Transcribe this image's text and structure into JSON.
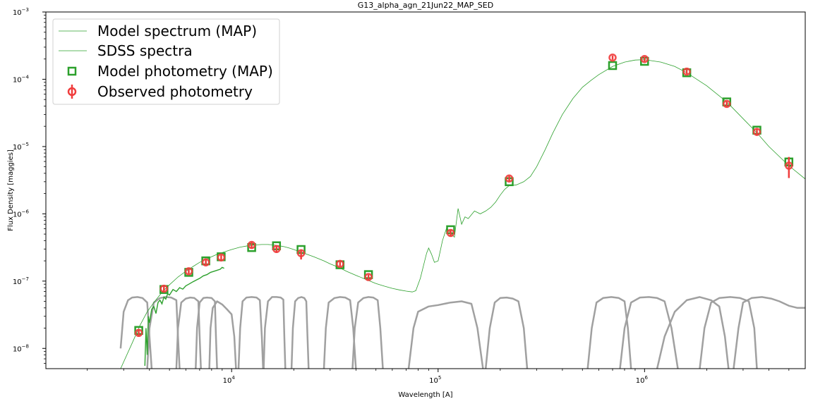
{
  "chart_data": {
    "type": "scatter",
    "title": "G13_alpha_agn_21Jun22_MAP_SED",
    "xlabel": "Wavelength [A]",
    "ylabel": "Flux Density [maggies]",
    "xscale": "log",
    "yscale": "log",
    "xlim": [
      1260,
      6000000
    ],
    "ylim": [
      5e-09,
      0.001
    ],
    "x_ticks": [
      {
        "value": 10000,
        "base": "10",
        "exp": "4"
      },
      {
        "value": 100000,
        "base": "10",
        "exp": "5"
      },
      {
        "value": 1000000,
        "base": "10",
        "exp": "6"
      }
    ],
    "y_ticks": [
      {
        "value": 1e-08,
        "base": "10",
        "exp": "−8"
      },
      {
        "value": 1e-07,
        "base": "10",
        "exp": "−7"
      },
      {
        "value": 1e-06,
        "base": "10",
        "exp": "−6"
      },
      {
        "value": 1e-05,
        "base": "10",
        "exp": "−5"
      },
      {
        "value": 0.0001,
        "base": "10",
        "exp": "−4"
      },
      {
        "value": 0.001,
        "base": "10",
        "exp": "−3"
      }
    ],
    "legend_position": "top-left",
    "grid": false,
    "colors": {
      "model_spectrum": "#2ca02c",
      "sdss_spectra": "#2ca02c",
      "model_photometry": "#2ca02c",
      "observed_photometry": "#f03c3c",
      "filters": "#a0a0a0"
    },
    "series": [
      {
        "name": "Model spectrum (MAP)",
        "kind": "line",
        "x": [
          2900,
          3300,
          3600,
          3900,
          4200,
          4600,
          5000,
          5500,
          6000,
          6500,
          7000,
          7500,
          8000,
          8500,
          9000,
          10000,
          11000,
          12000,
          13000,
          14000,
          15000,
          16000,
          17000,
          18000,
          19000,
          20000,
          22000,
          25000,
          28000,
          30000,
          33000,
          36000,
          40000,
          45000,
          50000,
          55000,
          60000,
          65000,
          70000,
          75000,
          78000,
          82000,
          85000,
          88000,
          90000,
          93000,
          96000,
          100000,
          105000,
          110000,
          115000,
          120000,
          125000,
          130000,
          135000,
          140000,
          150000,
          160000,
          170000,
          180000,
          190000,
          200000,
          210000,
          220000,
          240000,
          260000,
          280000,
          300000,
          330000,
          360000,
          400000,
          450000,
          500000,
          550000,
          600000,
          700000,
          800000,
          900000,
          1000000,
          1200000,
          1400000,
          1600000,
          2000000,
          2500000,
          3000000,
          3500000,
          4000000,
          5000000,
          6000000
        ],
        "y": [
          5e-09,
          1.2e-08,
          2.2e-08,
          3.5e-08,
          4.8e-08,
          6.8e-08,
          8.8e-08,
          1.15e-07,
          1.4e-07,
          1.65e-07,
          1.9e-07,
          2.1e-07,
          2.3e-07,
          2.5e-07,
          2.65e-07,
          2.95e-07,
          3.2e-07,
          3.35e-07,
          3.45e-07,
          3.5e-07,
          3.5e-07,
          3.45e-07,
          3.35e-07,
          3.25e-07,
          3.1e-07,
          2.95e-07,
          2.65e-07,
          2.3e-07,
          2e-07,
          1.8e-07,
          1.6e-07,
          1.4e-07,
          1.22e-07,
          1.05e-07,
          9.2e-08,
          8.4e-08,
          7.8e-08,
          7.4e-08,
          7.1e-08,
          6.9e-08,
          7.2e-08,
          1.1e-07,
          1.7e-07,
          2.6e-07,
          3.1e-07,
          2.5e-07,
          1.9e-07,
          2e-07,
          4e-07,
          6.2e-07,
          5.2e-07,
          4.5e-07,
          1.2e-06,
          7e-07,
          9e-07,
          8.5e-07,
          1.1e-06,
          1e-06,
          1.1e-06,
          1.25e-06,
          1.5e-06,
          1.9e-06,
          2.3e-06,
          2.6e-06,
          2.7e-06,
          3e-06,
          3.6e-06,
          5e-06,
          9e-06,
          1.6e-05,
          3e-05,
          5.2e-05,
          7.6e-05,
          9.6e-05,
          0.000117,
          0.000155,
          0.00018,
          0.000193,
          0.000196,
          0.00018,
          0.000155,
          0.000125,
          8e-05,
          4.6e-05,
          2.6e-05,
          1.6e-05,
          1e-05,
          5.2e-06,
          3.3e-06
        ]
      },
      {
        "name": "SDSS spectra",
        "kind": "line",
        "x": [
          3800,
          3850,
          3900,
          3950,
          4000,
          4100,
          4200,
          4300,
          4400,
          4500,
          4600,
          4700,
          4800,
          4900,
          5000,
          5200,
          5400,
          5600,
          5800,
          6000,
          6200,
          6500,
          6800,
          7000,
          7300,
          7600,
          7900,
          8200,
          8500,
          8800,
          9000,
          9200
        ],
        "y": [
          5.5e-09,
          2e-08,
          8e-09,
          3e-08,
          2.4e-08,
          3.8e-08,
          4.2e-08,
          3.3e-08,
          4.8e-08,
          5.2e-08,
          4.6e-08,
          5.8e-08,
          5.4e-08,
          6.5e-08,
          6.2e-08,
          7.5e-08,
          7e-08,
          8e-08,
          7.6e-08,
          8.5e-08,
          9e-08,
          9.8e-08,
          1.05e-07,
          1.1e-07,
          1.2e-07,
          1.25e-07,
          1.35e-07,
          1.4e-07,
          1.45e-07,
          1.5e-07,
          1.6e-07,
          1.55e-07
        ]
      },
      {
        "name": "Model photometry (MAP)",
        "kind": "markers",
        "x": [
          3550,
          4700,
          6200,
          7500,
          8900,
          12500,
          16500,
          21700,
          33500,
          46000,
          115000,
          221000,
          700000,
          1000000,
          1600000,
          2500000,
          3500000,
          5000000
        ],
        "y": [
          1.85e-08,
          7.5e-08,
          1.35e-07,
          2e-07,
          2.3e-07,
          3.15e-07,
          3.35e-07,
          2.95e-07,
          1.75e-07,
          1.25e-07,
          5.8e-07,
          3e-06,
          0.00016,
          0.000185,
          0.000125,
          4.6e-05,
          1.75e-05,
          5.9e-06
        ]
      },
      {
        "name": "Observed photometry",
        "kind": "markers_errorbar",
        "x": [
          3550,
          4700,
          6200,
          7500,
          8900,
          12500,
          16500,
          21700,
          33500,
          46000,
          115000,
          221000,
          700000,
          1000000,
          1600000,
          2500000,
          3500000,
          5000000
        ],
        "y": [
          1.7e-08,
          7.7e-08,
          1.4e-07,
          1.9e-07,
          2.25e-07,
          3.45e-07,
          3e-07,
          2.6e-07,
          1.8e-07,
          1.15e-07,
          5.2e-07,
          3.35e-06,
          0.00021,
          0.0002,
          0.00013,
          4.3e-05,
          1.65e-05,
          5.2e-06
        ],
        "y_err_low": [
          2e-09,
          8e-09,
          1.2e-08,
          1.8e-08,
          2e-08,
          4e-08,
          3.5e-08,
          5e-08,
          1.5e-08,
          1e-08,
          6e-08,
          3e-07,
          1.5e-05,
          1.5e-05,
          1e-05,
          4e-06,
          2e-06,
          1.8e-06
        ],
        "y_err_high": [
          2e-09,
          8e-09,
          1.2e-08,
          1.8e-08,
          2e-08,
          4e-08,
          3.5e-08,
          3e-08,
          1.5e-08,
          1e-08,
          6e-08,
          3e-07,
          1.5e-05,
          1.5e-05,
          1e-05,
          4e-06,
          2e-06,
          1.8e-06
        ]
      }
    ],
    "filter_curves": [
      {
        "x": [
          2900,
          3000,
          3150,
          3300,
          3500,
          3700,
          3900,
          4000,
          4100
        ],
        "y": [
          1e-08,
          3.5e-08,
          5.2e-08,
          5.7e-08,
          5.8e-08,
          5.6e-08,
          4.8e-08,
          1.5e-08,
          5e-09
        ]
      },
      {
        "x": [
          3900,
          4000,
          4200,
          4500,
          4800,
          5100,
          5400,
          5500,
          5600
        ],
        "y": [
          5e-09,
          2e-08,
          4.8e-08,
          5.6e-08,
          5.8e-08,
          5.7e-08,
          5.2e-08,
          1.5e-08,
          5e-09
        ]
      },
      {
        "x": [
          5400,
          5500,
          5700,
          6000,
          6300,
          6600,
          6900,
          7000,
          7100
        ],
        "y": [
          5e-09,
          2e-08,
          4.8e-08,
          5.5e-08,
          5.7e-08,
          5.6e-08,
          5e-08,
          1.5e-08,
          5e-09
        ]
      },
      {
        "x": [
          6700,
          6800,
          7000,
          7300,
          7600,
          8000,
          8300,
          8400,
          8500
        ],
        "y": [
          5e-09,
          2e-08,
          4.8e-08,
          5.6e-08,
          5.7e-08,
          5.6e-08,
          5e-08,
          1.5e-08,
          5e-09
        ]
      },
      {
        "x": [
          7800,
          7900,
          8100,
          8500,
          9000,
          9500,
          10000,
          10300,
          10500
        ],
        "y": [
          5e-09,
          2e-08,
          4e-08,
          5e-08,
          4.5e-08,
          3.8e-08,
          3.2e-08,
          1.5e-08,
          5e-09
        ]
      },
      {
        "x": [
          10800,
          11000,
          11300,
          11800,
          12500,
          13200,
          13700,
          14000,
          14200
        ],
        "y": [
          5e-09,
          2e-08,
          5e-08,
          5.7e-08,
          5.8e-08,
          5.7e-08,
          5.2e-08,
          1.5e-08,
          5e-09
        ]
      },
      {
        "x": [
          14300,
          14500,
          15000,
          15700,
          16500,
          17300,
          17800,
          18000,
          18200
        ],
        "y": [
          5e-09,
          2e-08,
          5e-08,
          5.8e-08,
          5.8e-08,
          5.7e-08,
          5.3e-08,
          1.5e-08,
          5e-09
        ]
      },
      {
        "x": [
          19500,
          19800,
          20300,
          21000,
          21800,
          22500,
          23000,
          23300,
          23600
        ],
        "y": [
          5e-09,
          2e-08,
          5e-08,
          5.6e-08,
          5.8e-08,
          5.6e-08,
          5e-08,
          1.5e-08,
          5e-09
        ]
      },
      {
        "x": [
          28000,
          28600,
          29500,
          31500,
          33500,
          35500,
          37500,
          38800,
          40000
        ],
        "y": [
          5e-09,
          2e-08,
          4.8e-08,
          5.6e-08,
          5.8e-08,
          5.7e-08,
          5.2e-08,
          2e-08,
          5e-09
        ]
      },
      {
        "x": [
          38500,
          39500,
          41000,
          43500,
          46000,
          48500,
          51000,
          52500,
          54000
        ],
        "y": [
          5e-09,
          2e-08,
          4.8e-08,
          5.6e-08,
          5.8e-08,
          5.7e-08,
          5.2e-08,
          2e-08,
          5e-09
        ]
      },
      {
        "x": [
          72000,
          76000,
          80000,
          90000,
          100000,
          115000,
          130000,
          145000,
          155000,
          165000
        ],
        "y": [
          5e-09,
          2e-08,
          3.5e-08,
          4.2e-08,
          4.4e-08,
          4.8e-08,
          5e-08,
          4.6e-08,
          2e-08,
          5e-09
        ]
      },
      {
        "x": [
          170000,
          178000,
          188000,
          200000,
          215000,
          230000,
          245000,
          260000,
          270000
        ],
        "y": [
          5e-09,
          2e-08,
          4.8e-08,
          5.6e-08,
          5.7e-08,
          5.5e-08,
          5e-08,
          2e-08,
          5e-09
        ]
      },
      {
        "x": [
          530000,
          555000,
          585000,
          630000,
          690000,
          750000,
          800000,
          830000,
          860000
        ],
        "y": [
          5e-09,
          2e-08,
          4.8e-08,
          5.6e-08,
          5.8e-08,
          5.6e-08,
          5e-08,
          2e-08,
          5e-09
        ]
      },
      {
        "x": [
          760000,
          800000,
          860000,
          950000,
          1050000,
          1150000,
          1250000,
          1350000,
          1450000
        ],
        "y": [
          5e-09,
          2e-08,
          4.8e-08,
          5.7e-08,
          5.8e-08,
          5.6e-08,
          5e-08,
          2e-08,
          5e-09
        ]
      },
      {
        "x": [
          1150000,
          1250000,
          1400000,
          1600000,
          1850000,
          2100000,
          2300000,
          2450000,
          2550000
        ],
        "y": [
          5e-09,
          1.5e-08,
          3.5e-08,
          5.2e-08,
          5.8e-08,
          5.2e-08,
          4.2e-08,
          1.5e-08,
          5e-09
        ]
      },
      {
        "x": [
          1850000,
          1950000,
          2100000,
          2300000,
          2600000,
          2900000,
          3200000,
          3400000,
          3500000
        ],
        "y": [
          5e-09,
          2e-08,
          4.8e-08,
          5.6e-08,
          5.8e-08,
          5.6e-08,
          5e-08,
          2e-08,
          5e-09
        ]
      },
      {
        "x": [
          2700000,
          2850000,
          3000000,
          3300000,
          3700000,
          4100000,
          4500000,
          5000000,
          5500000,
          6000000
        ],
        "y": [
          5e-09,
          2e-08,
          4.8e-08,
          5.6e-08,
          5.8e-08,
          5.5e-08,
          5e-08,
          4.3e-08,
          4e-08,
          4e-08
        ]
      }
    ]
  }
}
